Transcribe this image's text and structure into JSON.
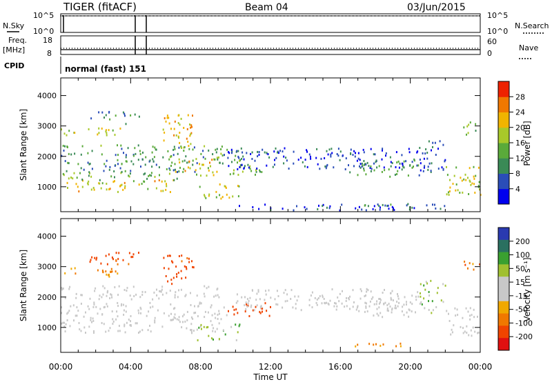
{
  "header": {
    "radar": "TIGER (fitACF)",
    "beam": "Beam 04",
    "date": "03/Jun/2015"
  },
  "strip": {
    "nsky_label": "N.Sky",
    "nsky_ticks": [
      "10^5",
      "10^0"
    ],
    "nsearch_label": "N.Search",
    "nsearch_ticks": [
      "10^5",
      "10^0"
    ],
    "freq_label": "Freq.",
    "freq_unit": "[MHz]",
    "freq_ticks": [
      "18",
      "8"
    ],
    "nave_label": "Nave",
    "nave_ticks": [
      "60",
      "0"
    ],
    "cpid_label": "CPID",
    "cpid_text": "normal (fast) 151"
  },
  "colors": {
    "power_scale": [
      "#0000ee",
      "#2a4db8",
      "#3a8a56",
      "#5aaa3a",
      "#a8c82a",
      "#f0b400",
      "#f07800",
      "#ee2200"
    ],
    "velocity_scale": [
      "#e01010",
      "#f04400",
      "#f07800",
      "#f0a800",
      "#c8c8c8",
      "#c8c8c8",
      "#a0c030",
      "#3aa030",
      "#2a7060",
      "#2a3ab0"
    ]
  },
  "chart_data": [
    {
      "type": "heatmap",
      "name": "power",
      "ylabel": "Slant Range [km]",
      "yticks": [
        "1000",
        "2000",
        "3000",
        "4000"
      ],
      "colorbar_label": "Power [dB]",
      "colorbar_ticks": [
        "4",
        "8",
        "12",
        "16",
        "20",
        "24",
        "28"
      ],
      "colorbar_range": [
        0,
        32
      ],
      "xlim": [
        0,
        24
      ],
      "ylim": [
        180,
        4580
      ],
      "bands": [
        {
          "x0": 0.0,
          "x1": 6.5,
          "r0": 850,
          "r1": 1250,
          "v": 20
        },
        {
          "x0": 0.0,
          "x1": 7.0,
          "r0": 1250,
          "r1": 1500,
          "v": 13
        },
        {
          "x0": 0.0,
          "x1": 8.0,
          "r0": 1500,
          "r1": 1950,
          "v": 10
        },
        {
          "x0": 0.0,
          "x1": 9.5,
          "r0": 2000,
          "r1": 2400,
          "v": 12
        },
        {
          "x0": 0.0,
          "x1": 3.5,
          "r0": 2700,
          "r1": 3000,
          "v": 18
        },
        {
          "x0": 1.5,
          "x1": 4.5,
          "r0": 3100,
          "r1": 3500,
          "v": 9
        },
        {
          "x0": 5.8,
          "x1": 7.6,
          "r0": 2300,
          "r1": 3400,
          "v": 22
        },
        {
          "x0": 6.5,
          "x1": 9.0,
          "r0": 1400,
          "r1": 2000,
          "v": 20
        },
        {
          "x0": 7.8,
          "x1": 10.2,
          "r0": 600,
          "r1": 1150,
          "v": 19
        },
        {
          "x0": 8.5,
          "x1": 10.5,
          "r0": 1800,
          "r1": 2300,
          "v": 12
        },
        {
          "x0": 9.5,
          "x1": 11.5,
          "r0": 1350,
          "r1": 1800,
          "v": 14
        },
        {
          "x0": 9.5,
          "x1": 20.5,
          "r0": 1600,
          "r1": 2300,
          "v": 5
        },
        {
          "x0": 16.5,
          "x1": 20.5,
          "r0": 1350,
          "r1": 1900,
          "v": 11
        },
        {
          "x0": 17.0,
          "x1": 20.0,
          "r0": 350,
          "r1": 500,
          "v": 8
        },
        {
          "x0": 20.5,
          "x1": 22.0,
          "r0": 1500,
          "r1": 2600,
          "v": 6
        },
        {
          "x0": 22.0,
          "x1": 24.0,
          "r0": 750,
          "r1": 1700,
          "v": 19
        },
        {
          "x0": 23.0,
          "x1": 24.0,
          "r0": 2700,
          "r1": 3200,
          "v": 16
        },
        {
          "x0": 10.0,
          "x1": 22.0,
          "r0": 250,
          "r1": 450,
          "v": 5
        }
      ]
    },
    {
      "type": "heatmap",
      "name": "velocity",
      "ylabel": "Slant Range [km]",
      "yticks": [
        "1000",
        "2000",
        "3000",
        "4000"
      ],
      "xlabel": "Time UT",
      "xticks": [
        "00:00",
        "04:00",
        "08:00",
        "12:00",
        "16:00",
        "20:00",
        "00:00"
      ],
      "colorbar_label": "Velocity [m s⁻¹]",
      "colorbar_ticks": [
        "200",
        "100",
        "50",
        "15",
        "-15",
        "-50",
        "-100",
        "-200"
      ],
      "xlim": [
        0,
        24
      ],
      "ylim": [
        180,
        4580
      ],
      "bands": [
        {
          "x0": 0.0,
          "x1": 9.6,
          "r0": 850,
          "r1": 1850,
          "v": 0
        },
        {
          "x0": 0.0,
          "x1": 9.5,
          "r0": 1950,
          "r1": 2400,
          "v": 0
        },
        {
          "x0": 0.0,
          "x1": 3.5,
          "r0": 2700,
          "r1": 3000,
          "v": -60
        },
        {
          "x0": 1.5,
          "x1": 4.5,
          "r0": 3100,
          "r1": 3500,
          "v": -120
        },
        {
          "x0": 5.8,
          "x1": 7.6,
          "r0": 2400,
          "r1": 3400,
          "v": -130
        },
        {
          "x0": 7.8,
          "x1": 10.2,
          "r0": 600,
          "r1": 1150,
          "v": 30
        },
        {
          "x0": 9.5,
          "x1": 12.0,
          "r0": 1400,
          "r1": 1850,
          "v": -160
        },
        {
          "x0": 10.0,
          "x1": 20.5,
          "r0": 1600,
          "r1": 2300,
          "v": 0
        },
        {
          "x0": 16.5,
          "x1": 20.5,
          "r0": 1350,
          "r1": 1900,
          "v": 0
        },
        {
          "x0": 16.8,
          "x1": 20.0,
          "r0": 380,
          "r1": 520,
          "v": -60
        },
        {
          "x0": 20.5,
          "x1": 22.0,
          "r0": 1500,
          "r1": 2600,
          "v": 30
        },
        {
          "x0": 22.0,
          "x1": 24.0,
          "r0": 750,
          "r1": 1700,
          "v": 0
        },
        {
          "x0": 23.0,
          "x1": 24.0,
          "r0": 2800,
          "r1": 3200,
          "v": -80
        }
      ]
    }
  ]
}
